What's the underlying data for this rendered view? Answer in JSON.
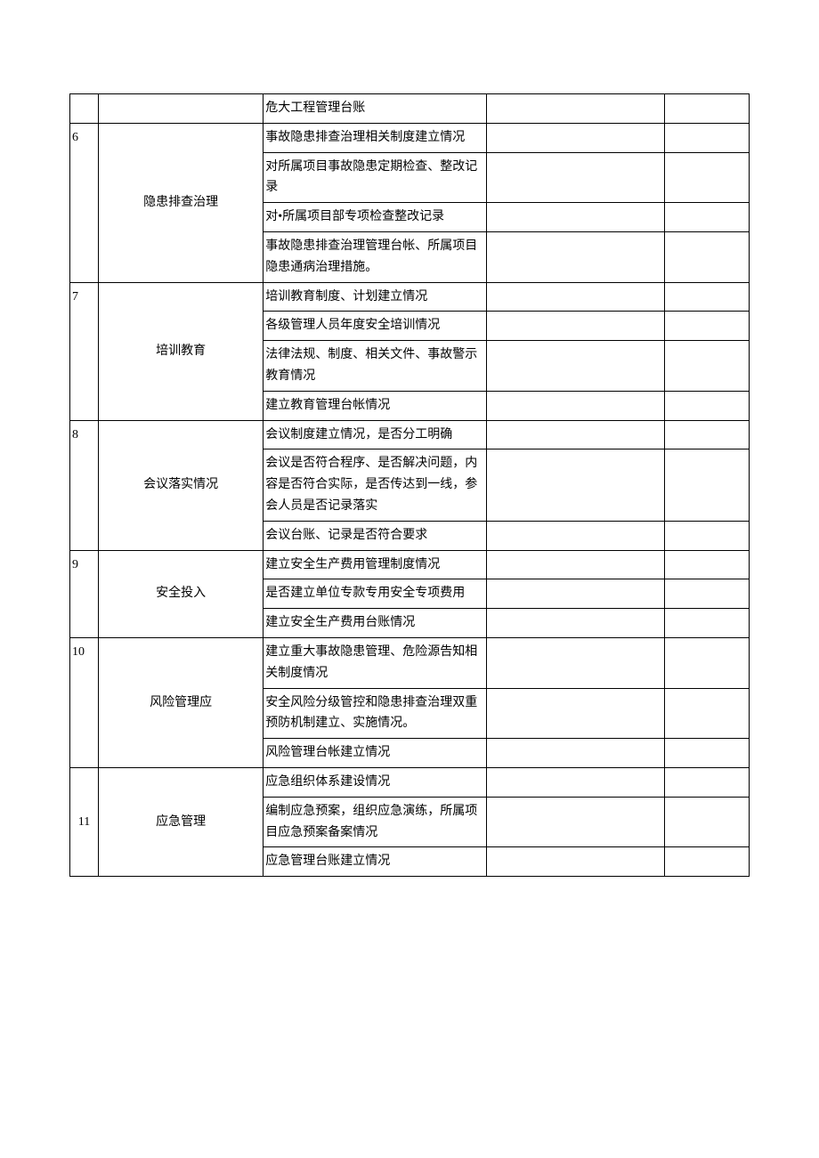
{
  "table": {
    "rows": [
      {
        "num": "",
        "cat": "",
        "item": "危大工程管理台账",
        "rowspan_num": 1,
        "rowspan_cat": 1,
        "show_num": true,
        "show_cat": true,
        "num_class": "num-top"
      },
      {
        "num": "6",
        "cat": "隐患排查治理",
        "item": "事故隐患排查治理相关制度建立情况",
        "rowspan_num": 4,
        "rowspan_cat": 4,
        "show_num": true,
        "show_cat": true,
        "num_class": "num-top"
      },
      {
        "item": "对所属项目事故隐患定期检查、整改记录",
        "show_num": false,
        "show_cat": false
      },
      {
        "item": "对•所属项目部专项检查整改记录",
        "show_num": false,
        "show_cat": false
      },
      {
        "item": "事故隐患排查治理管理台帐、所属项目隐患通病治理措施。",
        "show_num": false,
        "show_cat": false
      },
      {
        "num": "7",
        "cat": "培训教育",
        "item": "培训教育制度、计划建立情况",
        "rowspan_num": 4,
        "rowspan_cat": 4,
        "show_num": true,
        "show_cat": true,
        "num_class": "num-top"
      },
      {
        "item": "各级管理人员年度安全培训情况",
        "show_num": false,
        "show_cat": false
      },
      {
        "item": "法律法规、制度、相关文件、事故警示教育情况",
        "show_num": false,
        "show_cat": false
      },
      {
        "item": "建立教育管理台帐情况",
        "show_num": false,
        "show_cat": false
      },
      {
        "num": "8",
        "cat": "会议落实情况",
        "item": "会议制度建立情况，是否分工明确",
        "rowspan_num": 3,
        "rowspan_cat": 3,
        "show_num": true,
        "show_cat": true,
        "num_class": "num-top"
      },
      {
        "item": "会议是否符合程序、是否解决问题，内容是否符合实际，是否传达到一线，参会人员是否记录落实",
        "show_num": false,
        "show_cat": false
      },
      {
        "item": "会议台账、记录是否符合要求",
        "show_num": false,
        "show_cat": false
      },
      {
        "num": "9",
        "cat": "安全投入",
        "item": "建立安全生产费用管理制度情况",
        "rowspan_num": 3,
        "rowspan_cat": 3,
        "show_num": true,
        "show_cat": true,
        "num_class": "num-top"
      },
      {
        "item": "是否建立单位专款专用安全专项费用",
        "show_num": false,
        "show_cat": false
      },
      {
        "item": "建立安全生产费用台账情况",
        "show_num": false,
        "show_cat": false
      },
      {
        "num": "10",
        "cat": "风险管理应",
        "item": "建立重大事故隐患管理、危险源告知相关制度情况",
        "rowspan_num": 3,
        "rowspan_cat": 3,
        "show_num": true,
        "show_cat": true,
        "num_class": "num-top"
      },
      {
        "item": "安全风险分级管控和隐患排查治理双重预防机制建立、实施情况。",
        "show_num": false,
        "show_cat": false
      },
      {
        "item": "风险管理台帐建立情况",
        "show_num": false,
        "show_cat": false
      },
      {
        "num": "11",
        "cat": "应急管理",
        "item": "应急组织体系建设情况",
        "rowspan_num": 3,
        "rowspan_cat": 3,
        "show_num": true,
        "show_cat": true,
        "num_class": "num-mid"
      },
      {
        "item": "编制应急预案，组织应急演练，所属项目应急预案备案情况",
        "show_num": false,
        "show_cat": false
      },
      {
        "item": "应急管理台账建立情况",
        "show_num": false,
        "show_cat": false
      }
    ]
  },
  "style": {
    "border_color": "#000000",
    "text_color": "#000000",
    "background": "#ffffff",
    "font_size": 14,
    "line_height": 1.7,
    "col_widths": {
      "num": 32,
      "cat": 185,
      "item": 250,
      "e1": 200,
      "e2": 95
    }
  }
}
